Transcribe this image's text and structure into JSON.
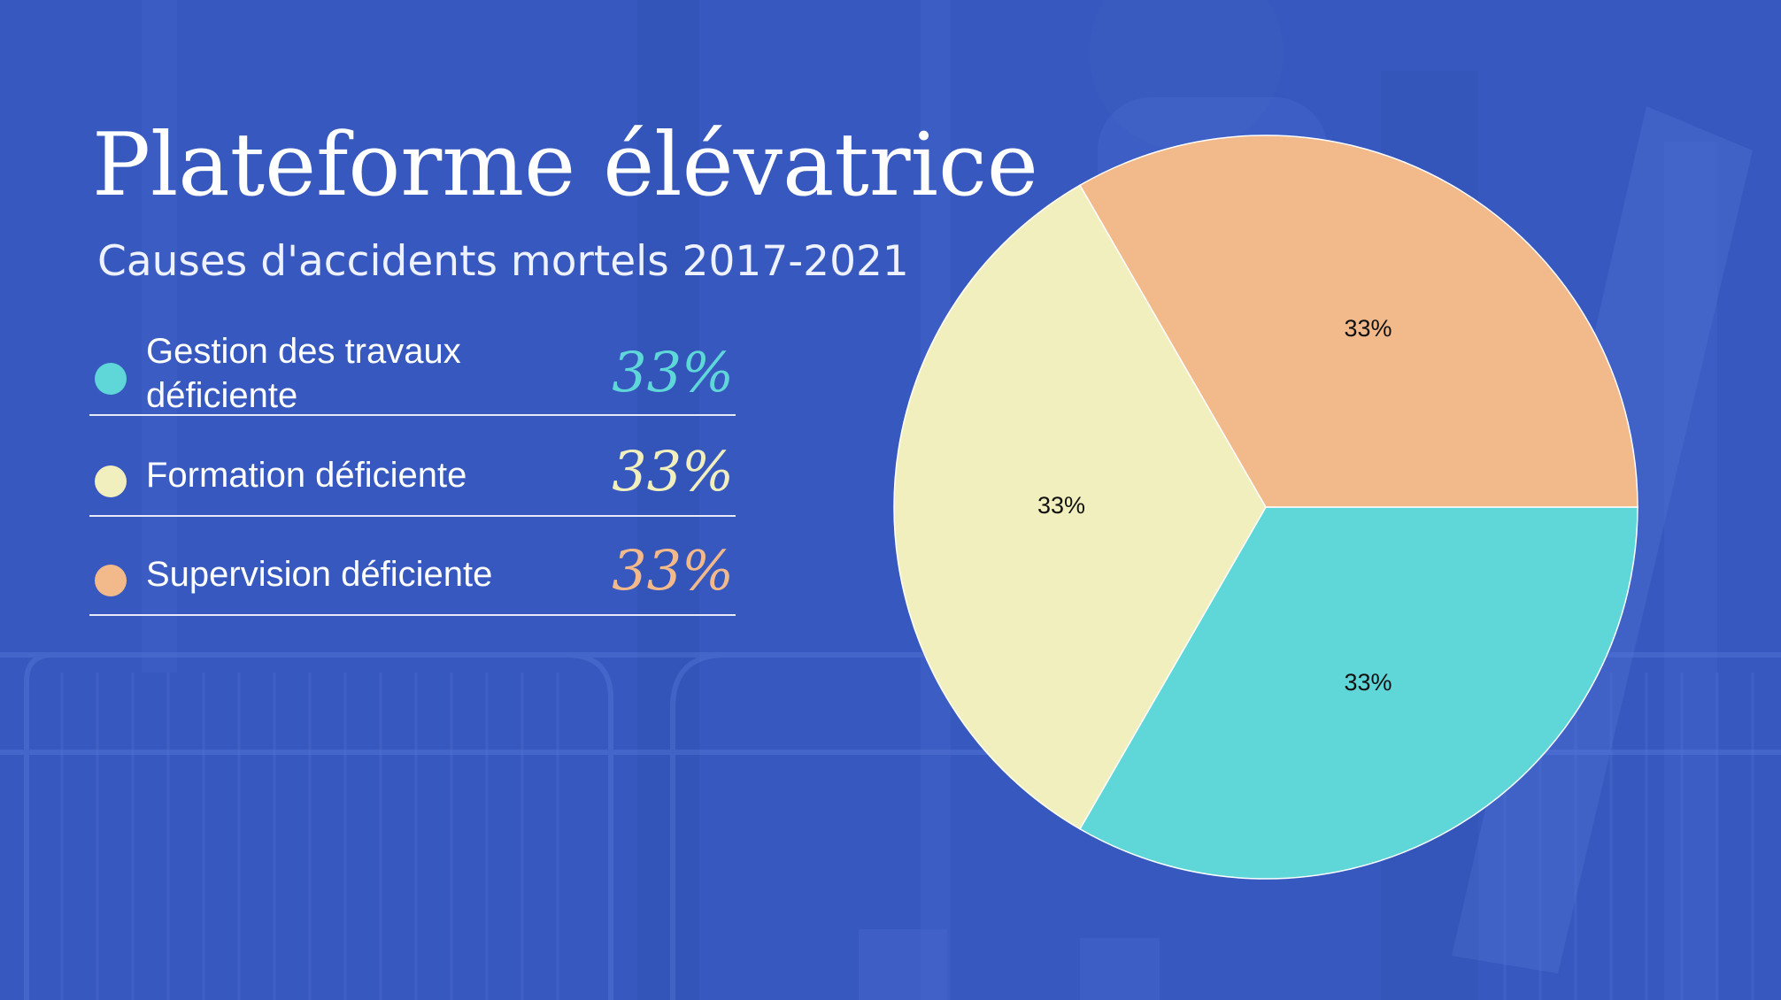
{
  "title": "Plateforme élévatrice",
  "subtitle": "Causes d'accidents mortels 2017-2021",
  "colors": {
    "background": "#3a5bc4",
    "cyan": "#5fd6d8",
    "cream": "#f2efbf",
    "peach": "#f2b98b"
  },
  "legend": [
    {
      "label": "Gestion des travaux\ndéficiente",
      "value": "33%",
      "color": "#5fd6d8"
    },
    {
      "label": "Formation déficiente",
      "value": "33%",
      "color": "#f2efbf"
    },
    {
      "label": "Supervision déficiente",
      "value": "33%",
      "color": "#f2b98b"
    }
  ],
  "chart_data": {
    "type": "pie",
    "categories": [
      "Gestion des travaux déficiente",
      "Formation déficiente",
      "Supervision déficiente"
    ],
    "values": [
      33,
      33,
      33
    ],
    "labels": [
      "33%",
      "33%",
      "33%"
    ],
    "colors": [
      "#5fd6d8",
      "#f2efbf",
      "#f2b98b"
    ]
  }
}
